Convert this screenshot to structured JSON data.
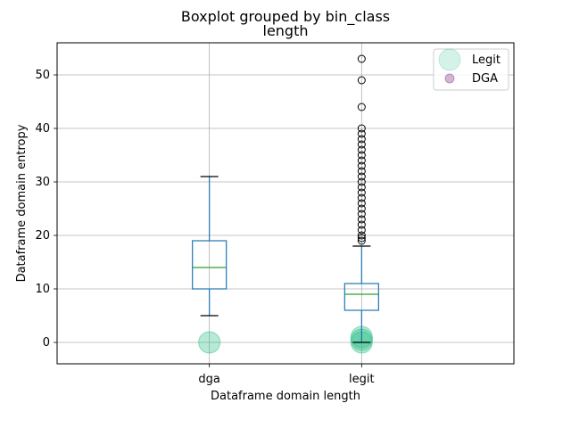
{
  "chart_data": {
    "type": "box",
    "suptitle": "Boxplot grouped by bin_class",
    "title": "length",
    "xlabel": "Dataframe domain length",
    "ylabel": "Dataframe domain entropy",
    "categories": [
      "dga",
      "legit"
    ],
    "ylim": [
      -4,
      56
    ],
    "yticks": [
      0,
      10,
      20,
      30,
      40,
      50
    ],
    "grid": true,
    "boxes": [
      {
        "category": "dga",
        "whisker_low": 5,
        "q1": 10,
        "median": 14,
        "q3": 19,
        "whisker_high": 31,
        "outliers": []
      },
      {
        "category": "legit",
        "whisker_low": 0,
        "q1": 6,
        "median": 9,
        "q3": 11,
        "whisker_high": 18,
        "outliers": [
          19,
          19.5,
          20,
          21,
          22,
          23,
          24,
          25,
          26,
          27,
          28,
          29,
          30,
          31,
          32,
          33,
          34,
          35,
          36,
          37,
          38,
          39,
          40,
          44,
          49,
          53
        ]
      }
    ],
    "scatter": [
      {
        "name": "Legit",
        "points": [
          [
            0,
            0
          ],
          [
            1,
            0
          ],
          [
            1,
            0.5
          ],
          [
            1,
            1
          ]
        ]
      }
    ],
    "legend": {
      "placement": "top-right",
      "entries": [
        {
          "label": "Legit",
          "color": "#2ec08a"
        },
        {
          "label": "DGA",
          "color": "#a05a9c"
        }
      ]
    },
    "colors": {
      "box": "#1f77b4",
      "median": "#2ca02c",
      "grid": "#b0b0b0",
      "legit": "#2ec08a",
      "dga": "#a05a9c"
    }
  }
}
